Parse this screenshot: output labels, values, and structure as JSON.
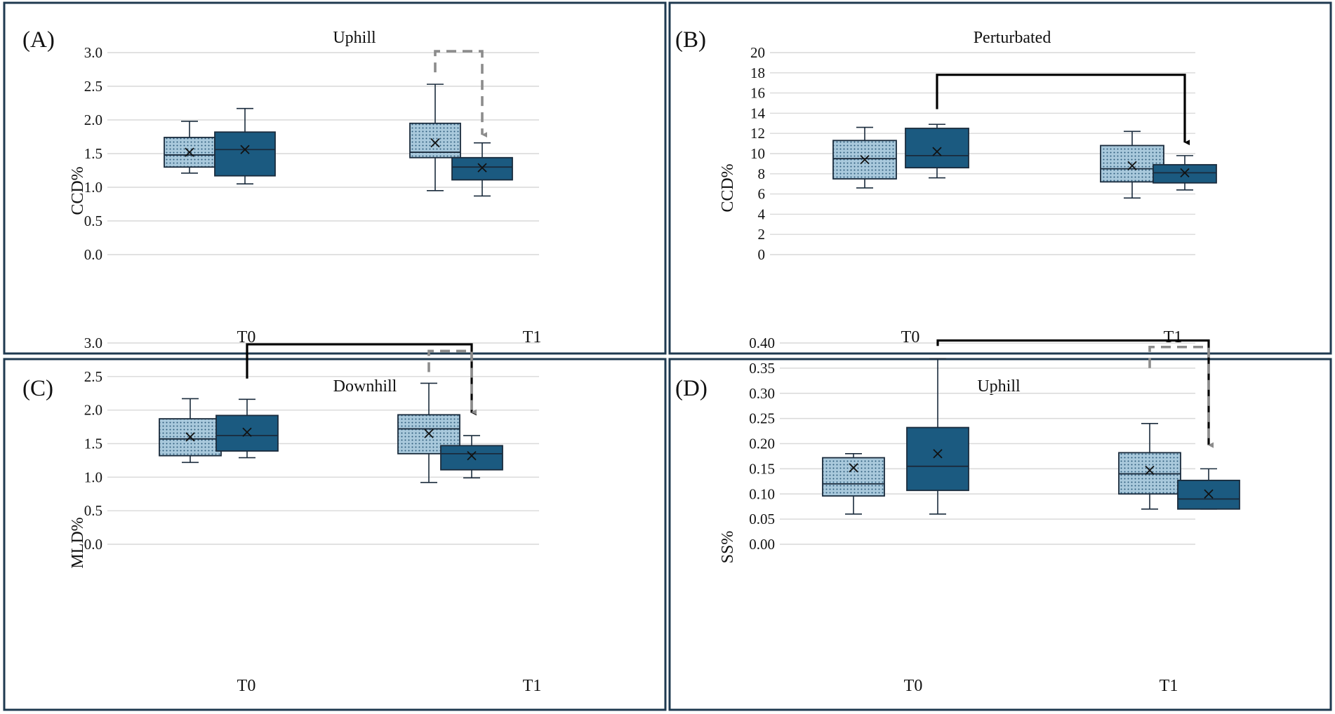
{
  "colors": {
    "border": "#1f3a50",
    "group_dotted_fill": "#a9c9dc",
    "group_dotted_pattern": "#2f5d7c",
    "group_solid_fill": "#1b5a80",
    "box_stroke": "#1a2b3c",
    "grid": "#d9d9d9",
    "sig_solid": "#000000",
    "sig_dashed": "#8c8c8c"
  },
  "chart_data": [
    {
      "panel": "A",
      "panel_label": "(A)",
      "type": "box",
      "title": "Uphill",
      "ylabel": "CCD%",
      "categories": [
        "T0",
        "T1"
      ],
      "ylim": [
        0,
        3.0
      ],
      "yticks": [
        "0.0",
        "0.5",
        "1.0",
        "1.5",
        "2.0",
        "2.5",
        "3.0"
      ],
      "series": [
        {
          "name": "dotted",
          "boxes": [
            {
              "min": 1.21,
              "q1": 1.3,
              "median": 1.48,
              "q3": 1.74,
              "max": 1.98,
              "mean": 1.52
            },
            {
              "min": 0.95,
              "q1": 1.44,
              "median": 1.52,
              "q3": 1.95,
              "max": 2.53,
              "mean": 1.66
            }
          ]
        },
        {
          "name": "solid",
          "boxes": [
            {
              "min": 1.05,
              "q1": 1.17,
              "median": 1.56,
              "q3": 1.82,
              "max": 2.17,
              "mean": 1.56
            },
            {
              "min": 0.87,
              "q1": 1.11,
              "median": 1.3,
              "q3": 1.44,
              "max": 1.66,
              "mean": 1.29
            }
          ]
        }
      ],
      "significance": [
        {
          "style": "dashed",
          "from": [
            1,
            0
          ],
          "to": [
            1,
            1
          ],
          "y": 3.02,
          "arrow_end": 1.78
        }
      ]
    },
    {
      "panel": "B",
      "panel_label": "(B)",
      "type": "box",
      "title": "Perturbated",
      "ylabel": "CCD%",
      "categories": [
        "T0",
        "T1"
      ],
      "ylim": [
        0,
        20
      ],
      "yticks": [
        "0",
        "2",
        "4",
        "6",
        "8",
        "10",
        "12",
        "14",
        "16",
        "18",
        "20"
      ],
      "series": [
        {
          "name": "dotted",
          "boxes": [
            {
              "min": 6.6,
              "q1": 7.5,
              "median": 9.5,
              "q3": 11.3,
              "max": 12.6,
              "mean": 9.4
            },
            {
              "min": 5.6,
              "q1": 7.2,
              "median": 8.5,
              "q3": 10.8,
              "max": 12.2,
              "mean": 8.8
            }
          ]
        },
        {
          "name": "solid",
          "boxes": [
            {
              "min": 7.6,
              "q1": 8.6,
              "median": 9.8,
              "q3": 12.5,
              "max": 12.9,
              "mean": 10.2
            },
            {
              "min": 6.4,
              "q1": 7.1,
              "median": 8.1,
              "q3": 8.9,
              "max": 9.8,
              "mean": 8.1
            }
          ]
        }
      ],
      "significance": [
        {
          "style": "solid",
          "from": [
            0,
            1
          ],
          "to": [
            1,
            1
          ],
          "y": 17.8,
          "start_end": 14.4,
          "arrow_end": 11.1
        }
      ]
    },
    {
      "panel": "C",
      "panel_label": "(C)",
      "type": "box",
      "title": "Downhill",
      "ylabel": "MLD%",
      "categories": [
        "T0",
        "T1"
      ],
      "ylim": [
        0,
        3.0
      ],
      "yticks": [
        "0.0",
        "0.5",
        "1.0",
        "1.5",
        "2.0",
        "2.5",
        "3.0"
      ],
      "series": [
        {
          "name": "dotted",
          "boxes": [
            {
              "min": 1.22,
              "q1": 1.32,
              "median": 1.57,
              "q3": 1.87,
              "max": 2.17,
              "mean": 1.6
            },
            {
              "min": 0.92,
              "q1": 1.35,
              "median": 1.72,
              "q3": 1.93,
              "max": 2.4,
              "mean": 1.65
            }
          ]
        },
        {
          "name": "solid",
          "boxes": [
            {
              "min": 1.29,
              "q1": 1.39,
              "median": 1.62,
              "q3": 1.92,
              "max": 2.16,
              "mean": 1.67
            },
            {
              "min": 0.99,
              "q1": 1.11,
              "median": 1.35,
              "q3": 1.47,
              "max": 1.62,
              "mean": 1.32
            }
          ]
        }
      ],
      "significance": [
        {
          "style": "solid",
          "from": [
            0,
            1
          ],
          "to": [
            1,
            1
          ],
          "y": 2.98,
          "start_end": 2.47,
          "arrow_end": 1.96
        },
        {
          "style": "dashed",
          "from": [
            1,
            0
          ],
          "to": [
            1,
            1
          ],
          "y": 2.88,
          "arrow_end": 1.97
        }
      ]
    },
    {
      "panel": "D",
      "panel_label": "(D)",
      "type": "box",
      "title": "Uphill",
      "ylabel": "SS%",
      "categories": [
        "T0",
        "T1"
      ],
      "ylim": [
        0,
        0.4
      ],
      "yticks": [
        "0.00",
        "0.05",
        "0.10",
        "0.15",
        "0.20",
        "0.25",
        "0.30",
        "0.35",
        "0.40"
      ],
      "series": [
        {
          "name": "dotted",
          "boxes": [
            {
              "min": 0.06,
              "q1": 0.096,
              "median": 0.12,
              "q3": 0.172,
              "max": 0.18,
              "mean": 0.152
            },
            {
              "min": 0.07,
              "q1": 0.1,
              "median": 0.14,
              "q3": 0.182,
              "max": 0.24,
              "mean": 0.147
            }
          ]
        },
        {
          "name": "solid",
          "boxes": [
            {
              "min": 0.06,
              "q1": 0.107,
              "median": 0.155,
              "q3": 0.232,
              "max": 0.369,
              "mean": 0.18
            },
            {
              "min": 0.07,
              "q1": 0.07,
              "median": 0.09,
              "q3": 0.127,
              "max": 0.15,
              "mean": 0.1
            }
          ]
        }
      ],
      "significance": [
        {
          "style": "solid",
          "from": [
            0,
            1
          ],
          "to": [
            1,
            1
          ],
          "y": 0.405,
          "start_end": 0.394,
          "arrow_end": 0.197
        },
        {
          "style": "dashed",
          "from": [
            1,
            0
          ],
          "to": [
            1,
            1
          ],
          "y": 0.392,
          "arrow_end": 0.197
        }
      ]
    }
  ]
}
